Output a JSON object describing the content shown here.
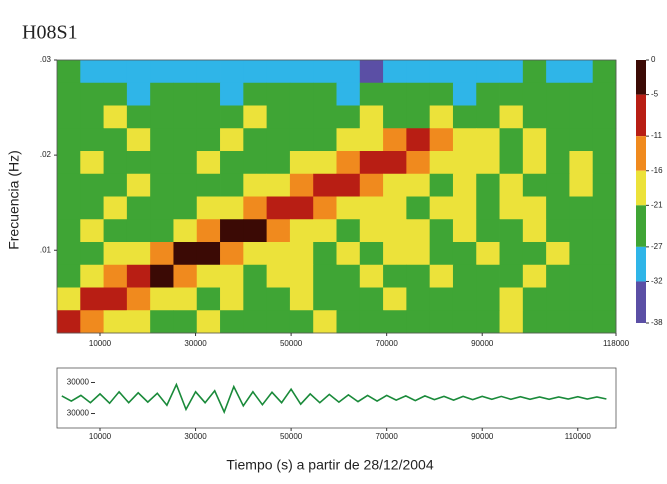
{
  "title": "H08S1",
  "chart_data": [
    {
      "type": "heatmap",
      "ylabel": "Frecuencia (Hz)",
      "xlim": [
        1000,
        118000
      ],
      "xticks": [
        10000,
        30000,
        50000,
        70000,
        90000,
        118000
      ],
      "ylim": [
        0.0013,
        0.03
      ],
      "yticks": [
        {
          "value": 0.01,
          "label": ".01"
        },
        {
          "value": 0.02,
          "label": ".02"
        },
        {
          "value": 0.03,
          "label": ".03"
        }
      ],
      "cticks": [
        0,
        -5,
        -11,
        -16,
        -21,
        -27,
        -32,
        -38
      ],
      "colors": [
        "#3b0a05",
        "#b81e14",
        "#f08a1e",
        "#ece23a",
        "#3fa535",
        "#2fb5e8",
        "#5b4fa5"
      ],
      "values": [
        [
          -26,
          -28,
          -28,
          -29,
          -28,
          -28,
          -30,
          -28,
          -29,
          -28,
          -28,
          -28,
          -30,
          -33,
          -29,
          -28,
          -28,
          -29,
          -28,
          -28,
          -27,
          -28,
          -28,
          -26
        ],
        [
          -22,
          -24,
          -23,
          -28,
          -22,
          -24,
          -22,
          -28,
          -23,
          -22,
          -24,
          -22,
          -28,
          -22,
          -23,
          -24,
          -22,
          -28,
          -22,
          -23,
          -24,
          -22,
          -23,
          -22
        ],
        [
          -22,
          -22,
          -18,
          -22,
          -22,
          -22,
          -24,
          -22,
          -18,
          -22,
          -22,
          -22,
          -22,
          -18,
          -22,
          -22,
          -18,
          -22,
          -22,
          -18,
          -22,
          -22,
          -22,
          -22
        ],
        [
          -22,
          -22,
          -22,
          -18,
          -22,
          -22,
          -22,
          -18,
          -22,
          -22,
          -22,
          -22,
          -18,
          -18,
          -16,
          -10,
          -13,
          -18,
          -18,
          -22,
          -18,
          -22,
          -22,
          -22
        ],
        [
          -22,
          -18,
          -22,
          -22,
          -22,
          -22,
          -18,
          -22,
          -22,
          -22,
          -18,
          -18,
          -14,
          -8,
          -9,
          -16,
          -18,
          -18,
          -18,
          -22,
          -18,
          -22,
          -18,
          -22
        ],
        [
          -22,
          -22,
          -22,
          -18,
          -22,
          -22,
          -22,
          -22,
          -18,
          -17,
          -14,
          -7,
          -8,
          -16,
          -18,
          -18,
          -22,
          -18,
          -22,
          -18,
          -22,
          -22,
          -18,
          -22
        ],
        [
          -22,
          -22,
          -18,
          -22,
          -22,
          -22,
          -18,
          -17,
          -14,
          -6,
          -7,
          -16,
          -18,
          -18,
          -18,
          -22,
          -18,
          -18,
          -22,
          -18,
          -18,
          -22,
          -22,
          -22
        ],
        [
          -22,
          -18,
          -22,
          -22,
          -22,
          -17,
          -14,
          -3,
          -5,
          -16,
          -18,
          -18,
          -22,
          -18,
          -18,
          -18,
          -22,
          -18,
          -22,
          -22,
          -18,
          -22,
          -22,
          -22
        ],
        [
          -22,
          -22,
          -18,
          -17,
          -14,
          -2,
          -4,
          -16,
          -18,
          -18,
          -18,
          -22,
          -18,
          -22,
          -18,
          -18,
          -22,
          -22,
          -18,
          -22,
          -22,
          -18,
          -22,
          -22
        ],
        [
          -22,
          -18,
          -16,
          -6,
          -3,
          -16,
          -18,
          -18,
          -22,
          -18,
          -18,
          -22,
          -22,
          -18,
          -22,
          -22,
          -18,
          -22,
          -22,
          -22,
          -18,
          -22,
          -22,
          -22
        ],
        [
          -18,
          -8,
          -7,
          -16,
          -18,
          -18,
          -22,
          -18,
          -22,
          -22,
          -18,
          -22,
          -22,
          -22,
          -18,
          -22,
          -22,
          -22,
          -22,
          -18,
          -22,
          -22,
          -22,
          -22
        ],
        [
          -10,
          -14,
          -18,
          -18,
          -22,
          -22,
          -18,
          -22,
          -22,
          -22,
          -22,
          -18,
          -22,
          -22,
          -22,
          -22,
          -22,
          -22,
          -22,
          -18,
          -22,
          -22,
          -22,
          -22
        ]
      ]
    },
    {
      "type": "line",
      "xlabel": "Tiempo (s) a partir de 28/12/2004",
      "color": "#1a8a3a",
      "xlim": [
        1000,
        118000
      ],
      "xticks": [
        10000,
        30000,
        50000,
        70000,
        90000,
        110000
      ],
      "ylim": [
        -58000,
        58000
      ],
      "yticks": [
        30000,
        {
          "value": -30000,
          "label": "30000"
        }
      ],
      "x": [
        2000,
        4000,
        6000,
        8000,
        10000,
        12000,
        14000,
        16000,
        18000,
        20000,
        22000,
        24000,
        26000,
        28000,
        30000,
        32000,
        34000,
        36000,
        38000,
        40000,
        42000,
        44000,
        46000,
        48000,
        50000,
        52000,
        54000,
        56000,
        58000,
        60000,
        62000,
        64000,
        66000,
        68000,
        70000,
        72000,
        74000,
        76000,
        78000,
        80000,
        82000,
        84000,
        86000,
        88000,
        90000,
        92000,
        94000,
        96000,
        98000,
        100000,
        102000,
        104000,
        106000,
        108000,
        110000,
        112000,
        114000,
        116000
      ],
      "values": [
        4000,
        -6000,
        5000,
        -9000,
        8000,
        -10000,
        12000,
        -9000,
        10000,
        -8000,
        9000,
        -14000,
        26000,
        -22000,
        12000,
        -9000,
        14000,
        -27000,
        22000,
        -15000,
        12000,
        -13000,
        11000,
        -9000,
        17000,
        -12000,
        8000,
        -9000,
        7000,
        -8000,
        6000,
        -7000,
        5000,
        -6000,
        5000,
        -4000,
        4000,
        -5000,
        4000,
        -3000,
        3000,
        -4000,
        3000,
        -3000,
        3000,
        -2500,
        3000,
        -2500,
        2500,
        -2500,
        2000,
        -2500,
        2000,
        -2000,
        2500,
        -2000,
        2000,
        -2000
      ]
    }
  ]
}
